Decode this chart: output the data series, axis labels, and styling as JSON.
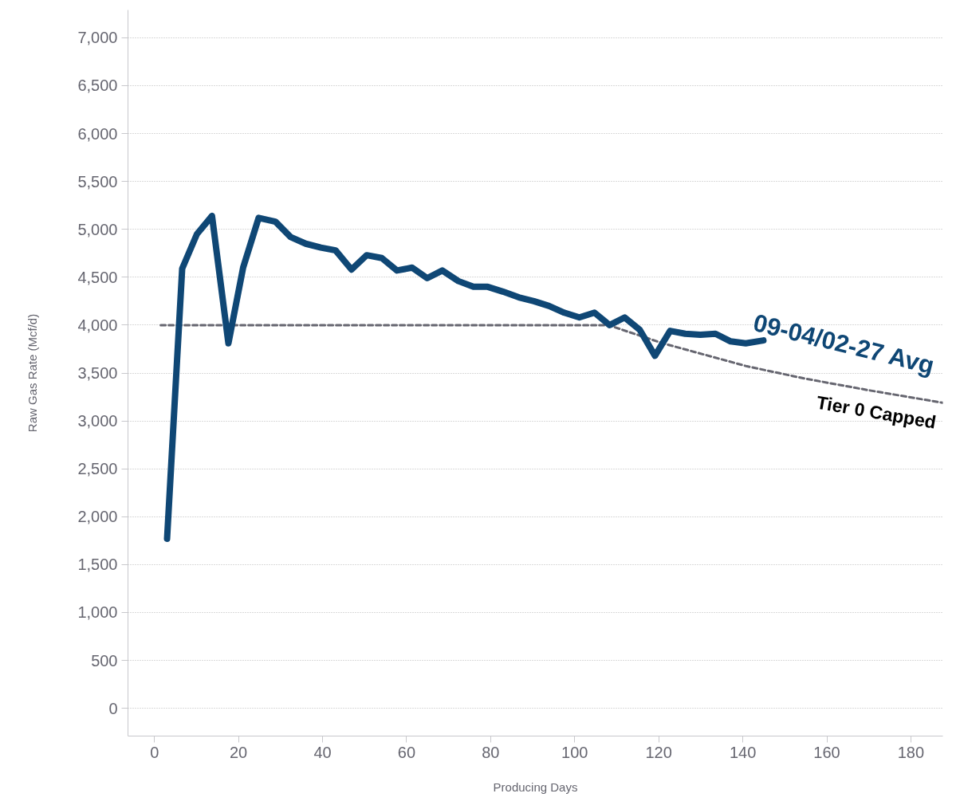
{
  "chart_data": {
    "type": "line",
    "xlabel": "Producing Days",
    "ylabel": "Raw Gas Rate (Mcf/d)",
    "xlim": [
      -6.3,
      187.6
    ],
    "ylim": [
      -290,
      7290
    ],
    "xticks": [
      0,
      20,
      40,
      60,
      80,
      100,
      120,
      140,
      160,
      180
    ],
    "yticks": [
      {
        "value": 0,
        "label": "0"
      },
      {
        "value": 500,
        "label": "500"
      },
      {
        "value": 1000,
        "label": "1,000"
      },
      {
        "value": 1500,
        "label": "1,500"
      },
      {
        "value": 2000,
        "label": "2,000"
      },
      {
        "value": 2500,
        "label": "2,500"
      },
      {
        "value": 3000,
        "label": "3,000"
      },
      {
        "value": 3500,
        "label": "3,500"
      },
      {
        "value": 4000,
        "label": "4,000"
      },
      {
        "value": 4500,
        "label": "4,500"
      },
      {
        "value": 5000,
        "label": "5,000"
      },
      {
        "value": 5500,
        "label": "5,500"
      },
      {
        "value": 6000,
        "label": "6,000"
      },
      {
        "value": 6500,
        "label": "6,500"
      },
      {
        "value": 7000,
        "label": "7,000"
      }
    ],
    "grid": "y",
    "legend": false,
    "marker": "none",
    "series": [
      {
        "name": "Tier 0 Capped",
        "color": "#666670",
        "line_style": "dashed",
        "x": [
          1.5,
          108,
          121,
          141,
          155,
          170,
          187.5
        ],
        "values": [
          4000,
          4000,
          3810,
          3570,
          3440,
          3320,
          3190
        ]
      },
      {
        "name": "09-04/02-27 Avg",
        "color": "#0f4775",
        "line_style": "solid",
        "x": [
          3.0,
          6.6,
          10.1,
          13.7,
          17.6,
          21.1,
          24.8,
          28.8,
          32.4,
          36.0,
          39.6,
          43.1,
          46.9,
          50.5,
          54.1,
          57.7,
          61.3,
          64.9,
          68.5,
          72.3,
          75.9,
          79.3,
          82.9,
          86.7,
          90.3,
          93.9,
          97.5,
          101.1,
          104.7,
          108.3,
          111.9,
          115.5,
          119.1,
          122.7,
          126.3,
          129.9,
          133.5,
          137.1,
          140.7,
          144.9
        ],
        "values": [
          1770,
          4590,
          4950,
          5140,
          3810,
          4600,
          5120,
          5080,
          4920,
          4850,
          4810,
          4780,
          4580,
          4730,
          4700,
          4570,
          4600,
          4490,
          4570,
          4460,
          4400,
          4400,
          4350,
          4290,
          4250,
          4200,
          4130,
          4080,
          4130,
          4000,
          4080,
          3950,
          3680,
          3940,
          3910,
          3900,
          3910,
          3830,
          3810,
          3840
        ]
      }
    ]
  }
}
